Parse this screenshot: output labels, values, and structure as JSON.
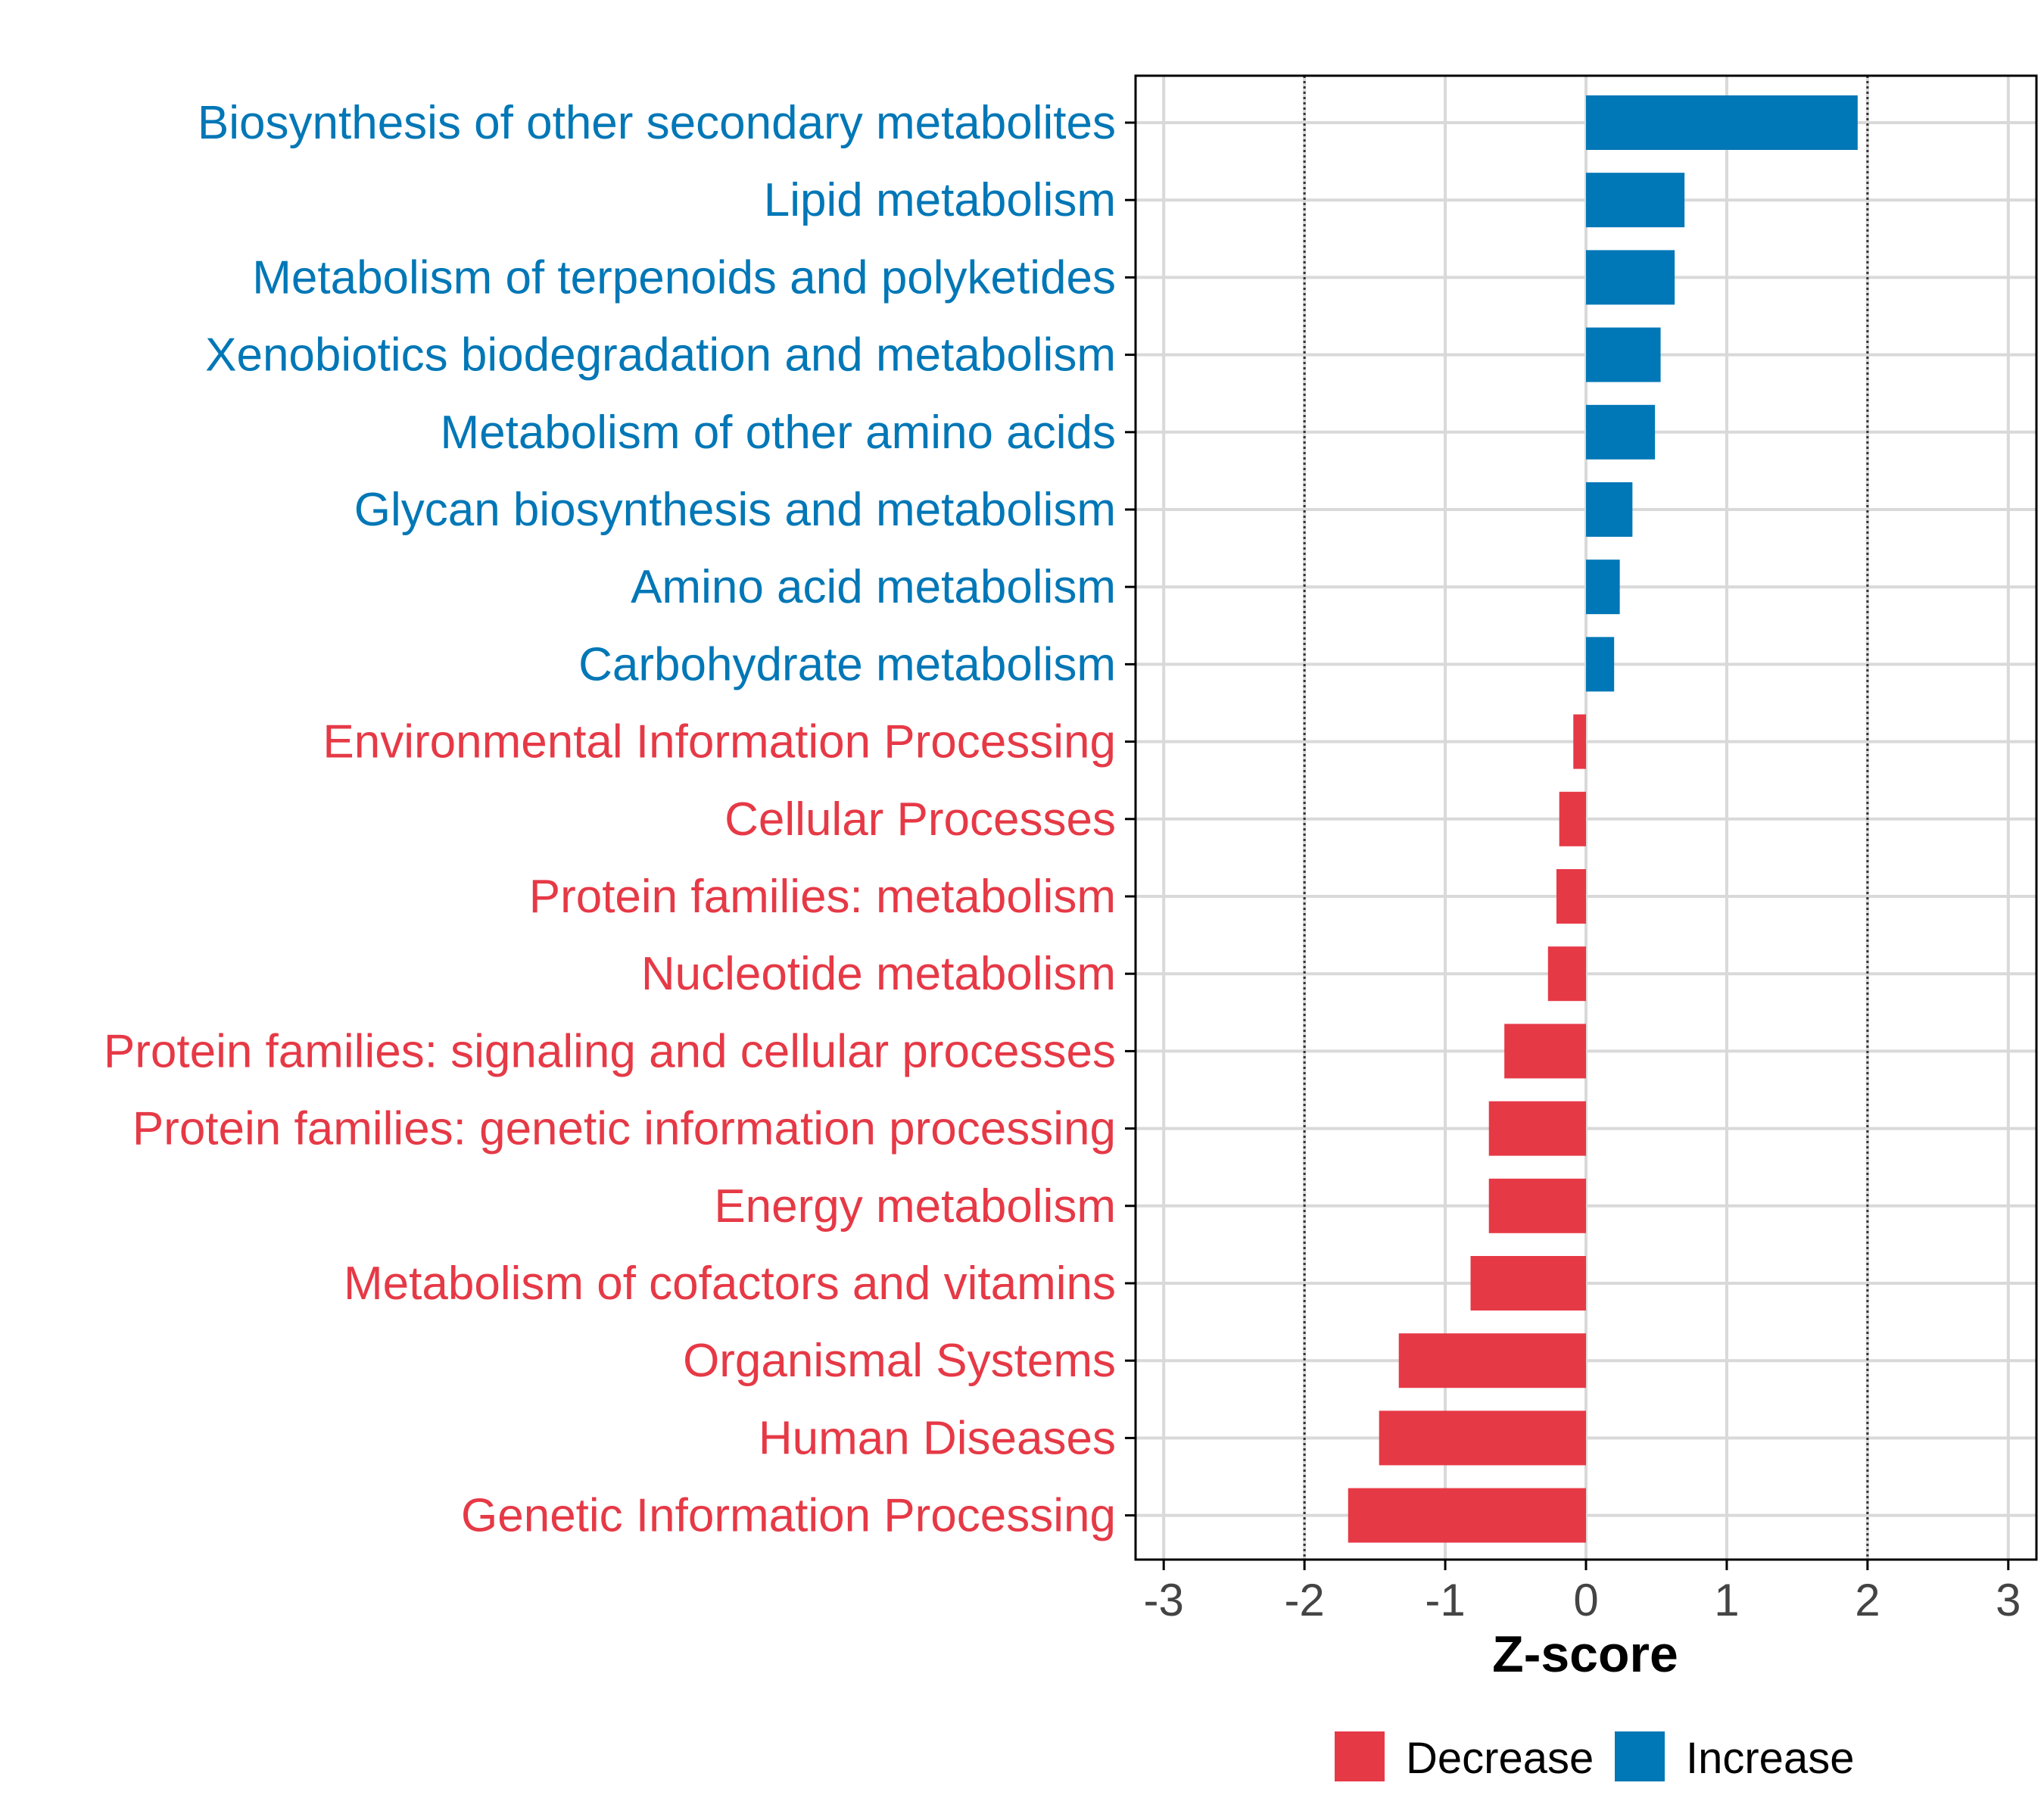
{
  "chart_data": {
    "type": "bar",
    "orientation": "horizontal",
    "title": "",
    "xlabel": "Z-score",
    "ylabel": "",
    "xlim": [
      -3.2,
      3.2
    ],
    "x_ticks": [
      -3,
      -2,
      -1,
      0,
      1,
      2,
      3
    ],
    "x_tick_labels": [
      "-3",
      "-2",
      "-1",
      "0",
      "1",
      "2",
      "3"
    ],
    "reference_lines": [
      -2,
      2
    ],
    "grid": true,
    "colors": {
      "increase": "#0077b6",
      "decrease": "#e63946",
      "grid": "#d9d9d9",
      "axis": "#000000"
    },
    "categories": [
      "Biosynthesis of other secondary metabolites",
      "Lipid metabolism",
      "Metabolism of terpenoids and polyketides",
      "Xenobiotics biodegradation and metabolism",
      "Metabolism of other amino acids",
      "Glycan biosynthesis and metabolism",
      "Amino acid metabolism",
      "Carbohydrate metabolism",
      "Environmental Information Processing",
      "Cellular Processes",
      "Protein families: metabolism",
      "Nucleotide metabolism",
      "Protein families: signaling and cellular processes",
      "Protein families: genetic information processing",
      "Energy metabolism",
      "Metabolism of cofactors and vitamins",
      "Organismal Systems",
      "Human Diseases",
      "Genetic Information Processing"
    ],
    "values": [
      1.93,
      0.7,
      0.63,
      0.53,
      0.49,
      0.33,
      0.24,
      0.2,
      -0.09,
      -0.19,
      -0.21,
      -0.27,
      -0.58,
      -0.69,
      -0.69,
      -0.82,
      -1.33,
      -1.47,
      -1.69
    ],
    "groups": [
      "Increase",
      "Increase",
      "Increase",
      "Increase",
      "Increase",
      "Increase",
      "Increase",
      "Increase",
      "Decrease",
      "Decrease",
      "Decrease",
      "Decrease",
      "Decrease",
      "Decrease",
      "Decrease",
      "Decrease",
      "Decrease",
      "Decrease",
      "Decrease"
    ],
    "legend": {
      "placement": "bottom",
      "entries": [
        {
          "label": "Decrease",
          "color": "#e63946"
        },
        {
          "label": "Increase",
          "color": "#0077b6"
        }
      ]
    }
  }
}
